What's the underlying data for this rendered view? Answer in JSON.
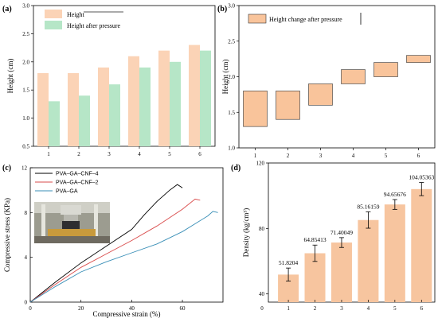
{
  "panel_labels": {
    "a": "(a)",
    "b": "(b)",
    "c": "(c)",
    "d": "(d)"
  },
  "colors": {
    "height": "#fbd3b6",
    "after": "#b6e6c7",
    "floating": "#f9c49b",
    "density": "#f7c59f",
    "black": "#000000",
    "red": "#d94b4b",
    "blue": "#3a8fb7"
  },
  "inset_photo": "compression-test-photo",
  "chart_data": [
    {
      "id": "a",
      "type": "bar",
      "categories": [
        "1",
        "2",
        "3",
        "4",
        "5",
        "6"
      ],
      "series": [
        {
          "name": "Height",
          "values": [
            1.8,
            1.8,
            1.9,
            2.1,
            2.2,
            2.3
          ]
        },
        {
          "name": "Height after pressure",
          "values": [
            1.3,
            1.4,
            1.6,
            1.9,
            2.0,
            2.2
          ]
        }
      ],
      "ylabel": "Height (cm)",
      "ylim": [
        0.5,
        3.0
      ],
      "yticks": [
        "0.5",
        "1.0",
        "1.5",
        "2.0",
        "2.5",
        "3.0"
      ],
      "grid": false,
      "legend": "top-left"
    },
    {
      "id": "b",
      "type": "bar",
      "categories": [
        "1",
        "2",
        "3",
        "4",
        "5",
        "6"
      ],
      "series": [
        {
          "name": "Height change after pressure",
          "low": [
            1.3,
            1.4,
            1.6,
            1.9,
            2.0,
            2.2
          ],
          "high": [
            1.8,
            1.8,
            1.9,
            2.1,
            2.2,
            2.3
          ]
        }
      ],
      "ylabel": "Height (cm)",
      "ylim": [
        1.0,
        3.0
      ],
      "yticks": [
        "1.0",
        "1.5",
        "2.0",
        "2.5",
        "3.0"
      ],
      "grid": false,
      "legend": "top-left"
    },
    {
      "id": "c",
      "type": "line",
      "xlabel": "Compressive strain (%)",
      "ylabel": "Compressive stress (KPa)",
      "xlim": [
        0,
        76
      ],
      "ylim": [
        0,
        12
      ],
      "xticks": [
        "0",
        "20",
        "40",
        "60"
      ],
      "yticks": [
        "0",
        "4",
        "8",
        "12"
      ],
      "series": [
        {
          "name": "PVA–GA–CNF–4",
          "x": [
            0,
            10,
            20,
            30,
            40,
            45,
            50,
            55,
            58,
            60
          ],
          "y": [
            0,
            1.8,
            3.5,
            5.0,
            6.5,
            7.8,
            9.0,
            10.0,
            10.5,
            10.2
          ]
        },
        {
          "name": "PVA–GA–CNF–2",
          "x": [
            0,
            10,
            20,
            30,
            40,
            50,
            60,
            65,
            67
          ],
          "y": [
            0,
            1.6,
            3.1,
            4.3,
            5.5,
            6.8,
            8.3,
            9.2,
            9.1
          ]
        },
        {
          "name": "PVA–GA",
          "x": [
            0,
            10,
            20,
            30,
            40,
            50,
            60,
            70,
            72,
            74
          ],
          "y": [
            0,
            1.4,
            2.7,
            3.6,
            4.4,
            5.2,
            6.3,
            7.7,
            8.1,
            8.0
          ]
        }
      ],
      "grid": false,
      "legend": "top-left"
    },
    {
      "id": "d",
      "type": "bar",
      "categories": [
        "1",
        "2",
        "3",
        "4",
        "5",
        "6"
      ],
      "values": [
        51.8204,
        64.85413,
        71.40049,
        85.16159,
        94.65676,
        104.05363
      ],
      "errors": [
        4,
        5,
        3,
        5,
        3,
        4
      ],
      "data_labels": [
        "51.8204",
        "64.85413",
        "71.40049",
        "85.16159",
        "94.65676",
        "104.05363"
      ],
      "ylabel": "Density (kg/cm³)",
      "ylim": [
        35,
        120
      ],
      "yticks": [
        "40",
        "80",
        "120"
      ],
      "xticks_extra": [
        "0"
      ],
      "grid": false
    }
  ]
}
